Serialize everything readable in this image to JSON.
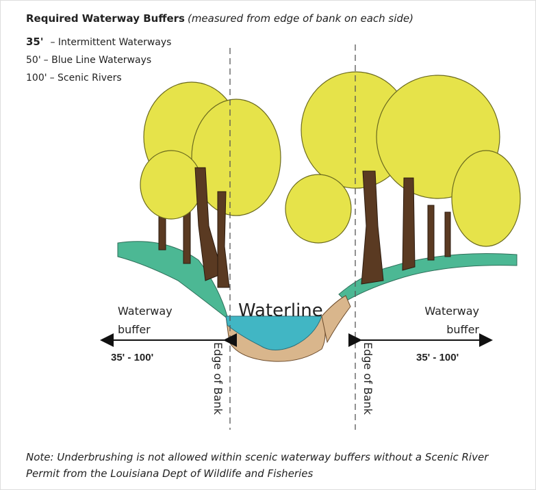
{
  "header": {
    "title": "Required Waterway Buffers",
    "subtitle": "(measured from edge of bank on each side)"
  },
  "buffers": [
    {
      "width": "35'",
      "label": "– Intermittent Waterways"
    },
    {
      "width": "50'",
      "label": "– Blue Line Waterways"
    },
    {
      "width": "100'",
      "label": "– Scenic Rivers"
    }
  ],
  "diagram": {
    "waterline": "Waterline",
    "left": {
      "buffer_label": [
        "Waterway",
        "buffer"
      ],
      "range": "35' - 100'",
      "edge": "Edge of Bank"
    },
    "right": {
      "buffer_label": [
        "Waterway",
        "buffer"
      ],
      "range": "35' - 100'",
      "edge": "Edge of Bank"
    }
  },
  "note": [
    "Note: Underbrushing is not allowed within scenic waterway buffers without a Scenic River",
    "Permit from the Louisiana Dept of Wildlife and Fisheries"
  ]
}
